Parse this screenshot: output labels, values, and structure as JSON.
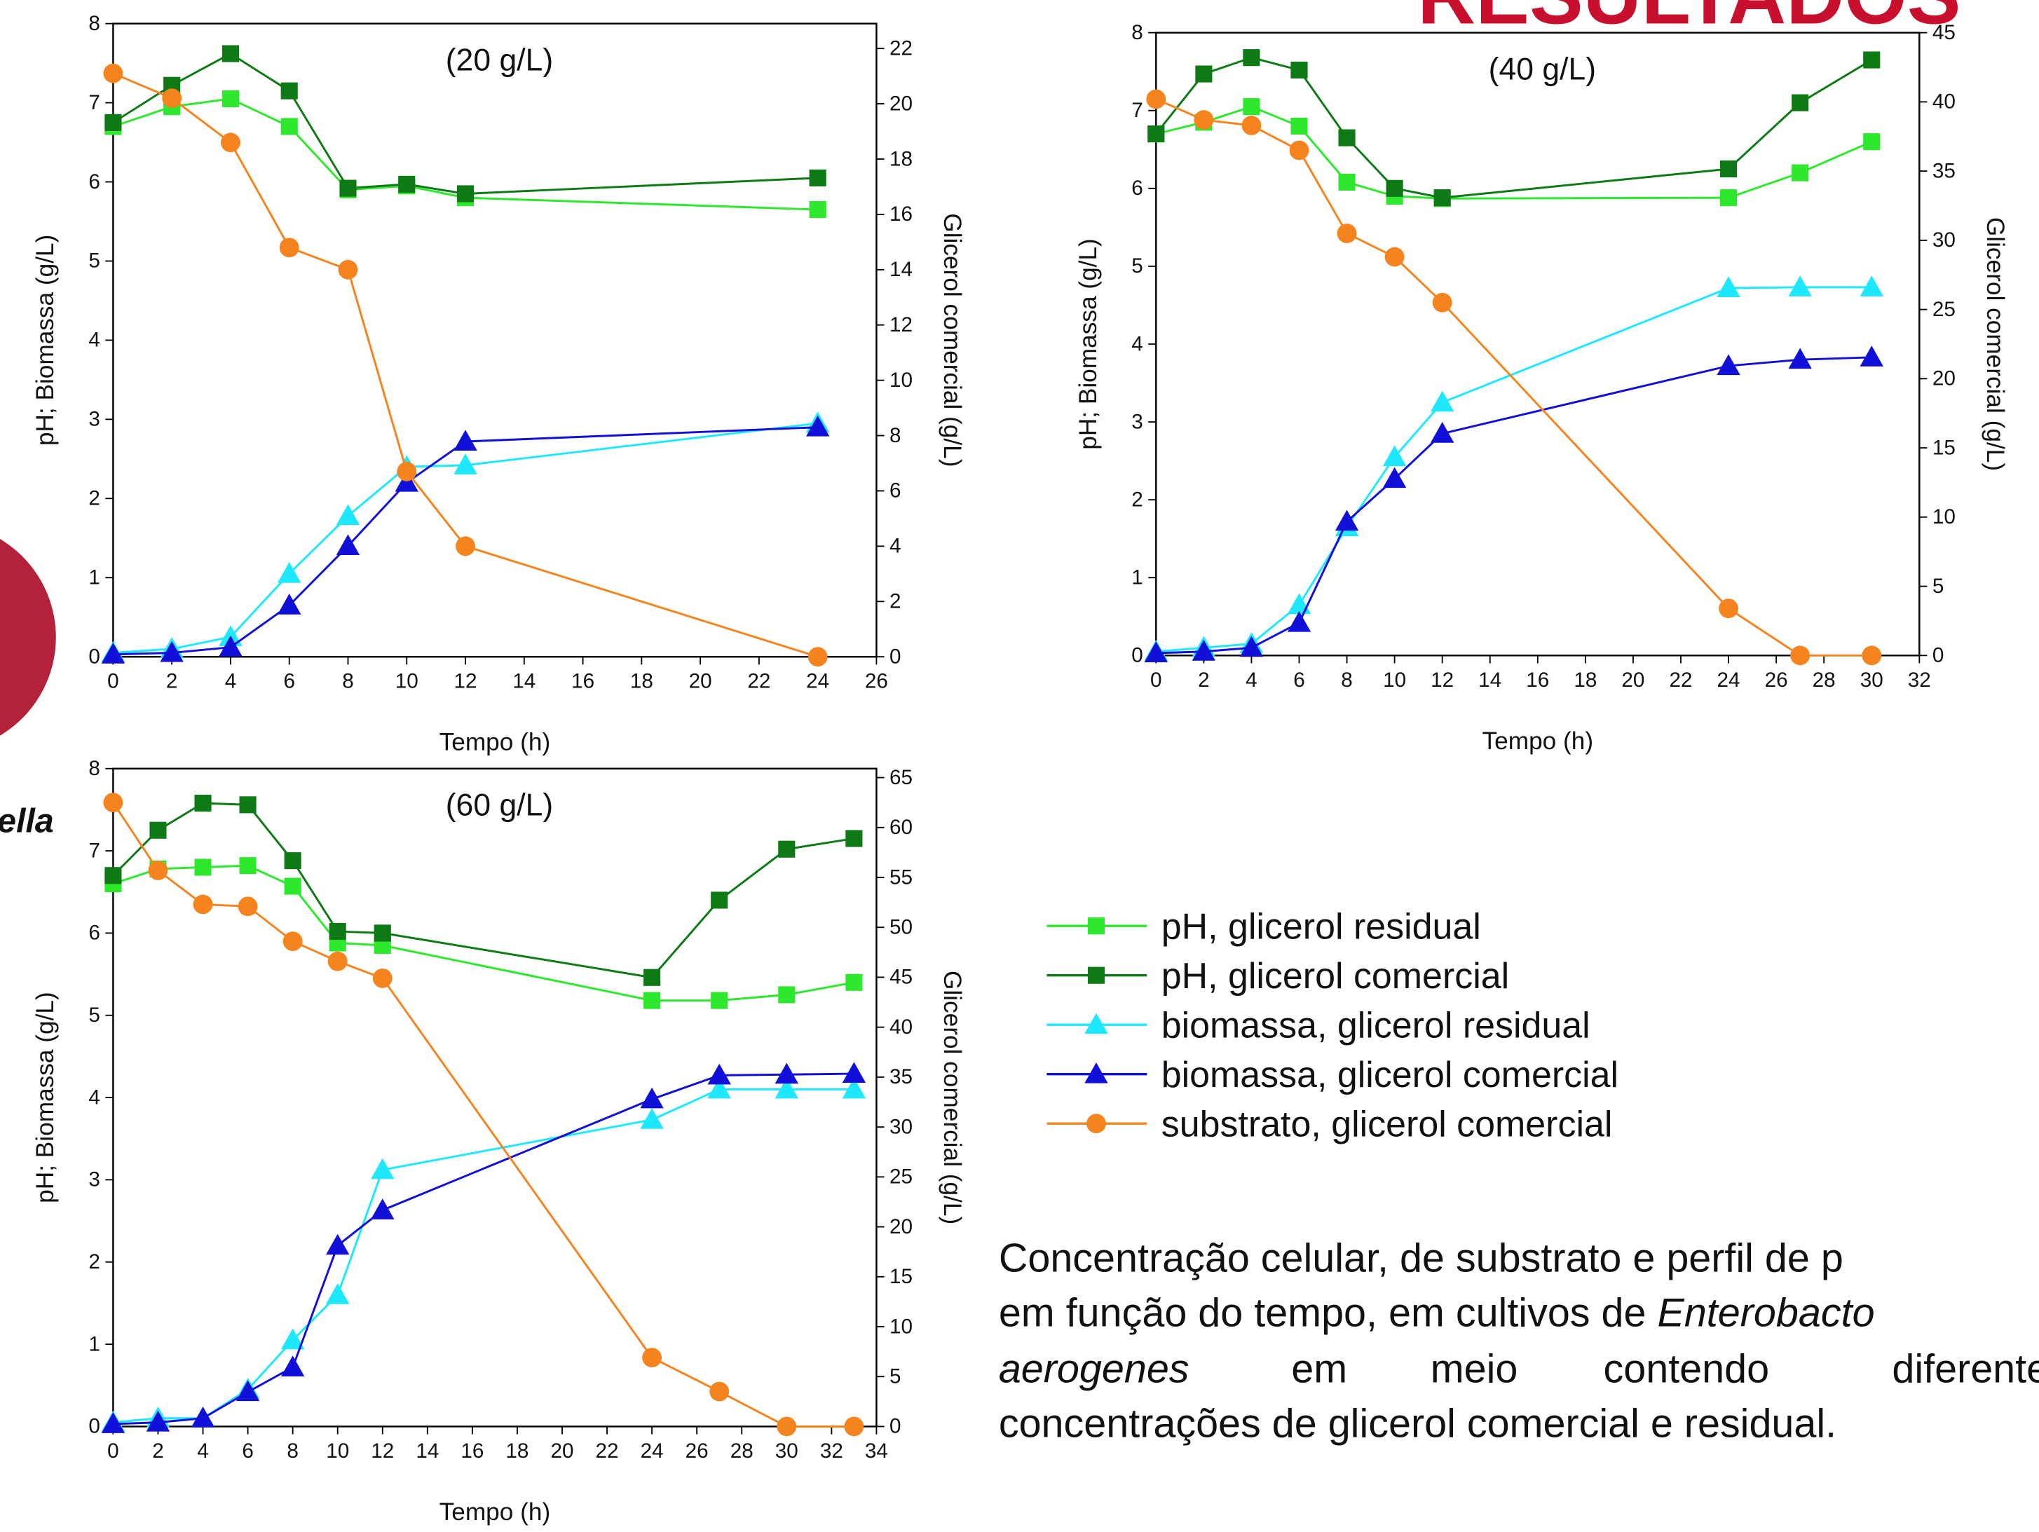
{
  "header_title": "RESULTADOS",
  "side_text": "ella",
  "chart_data": [
    {
      "type": "line",
      "title": "(20 g/L)",
      "xlabel": "Tempo (h)",
      "ylabel": "pH; Biomassa (g/L)",
      "y2label": "Glicerol comercial (g/L)",
      "x": [
        0,
        2,
        4,
        6,
        8,
        10,
        12,
        24
      ],
      "xlim": [
        0,
        26
      ],
      "xticks": [
        0,
        2,
        4,
        6,
        8,
        10,
        12,
        14,
        16,
        18,
        20,
        22,
        24,
        26
      ],
      "ylim": [
        0,
        8
      ],
      "yticks": [
        0,
        1,
        2,
        3,
        4,
        5,
        6,
        7,
        8
      ],
      "y2lim": [
        0,
        22.9
      ],
      "y2ticks": [
        0,
        2,
        4,
        6,
        8,
        10,
        12,
        14,
        16,
        18,
        20,
        22
      ],
      "series": [
        {
          "name": "pH, glicerol residual",
          "color": "#2de82d",
          "marker": "square",
          "values": [
            6.7,
            6.95,
            7.05,
            6.7,
            5.9,
            5.95,
            5.8,
            5.65
          ]
        },
        {
          "name": "pH, glicerol comercial",
          "color": "#0e7a16",
          "marker": "square",
          "values": [
            6.75,
            7.22,
            7.62,
            7.15,
            5.92,
            5.97,
            5.85,
            6.05
          ]
        },
        {
          "name": "biomassa, glicerol residual",
          "color": "#1ee8ff",
          "marker": "triangle",
          "values": [
            0.05,
            0.1,
            0.25,
            1.05,
            1.78,
            2.4,
            2.42,
            2.95
          ]
        },
        {
          "name": "biomassa, glicerol comercial",
          "color": "#1010d8",
          "marker": "triangle",
          "values": [
            0.03,
            0.05,
            0.12,
            0.65,
            1.4,
            2.2,
            2.72,
            2.9
          ]
        },
        {
          "name": "substrato, glicerol comercial",
          "color": "#f5841f",
          "marker": "circle",
          "axis": "y2",
          "values": [
            21.1,
            20.2,
            18.6,
            14.8,
            14.0,
            6.7,
            4.0,
            0
          ]
        }
      ]
    },
    {
      "type": "line",
      "title": "(40 g/L)",
      "xlabel": "Tempo (h)",
      "ylabel": "pH; Biomassa (g/L)",
      "y2label": "Glicerol comercial (g/L)",
      "x": [
        0,
        2,
        4,
        6,
        8,
        10,
        12,
        24,
        27,
        30
      ],
      "xlim": [
        0,
        32
      ],
      "xticks": [
        0,
        2,
        4,
        6,
        8,
        10,
        12,
        14,
        16,
        18,
        20,
        22,
        24,
        26,
        28,
        30,
        32
      ],
      "ylim": [
        0,
        8
      ],
      "yticks": [
        0,
        1,
        2,
        3,
        4,
        5,
        6,
        7,
        8
      ],
      "y2lim": [
        0,
        45
      ],
      "y2ticks": [
        0,
        5,
        10,
        15,
        20,
        25,
        30,
        35,
        40,
        45
      ],
      "series": [
        {
          "name": "pH, glicerol residual",
          "color": "#2de82d",
          "marker": "square",
          "values": [
            6.7,
            6.85,
            7.05,
            6.8,
            6.08,
            5.9,
            5.87,
            5.88,
            6.2,
            6.6
          ]
        },
        {
          "name": "pH, glicerol comercial",
          "color": "#0e7a16",
          "marker": "square",
          "values": [
            6.7,
            7.47,
            7.68,
            7.52,
            6.65,
            6.0,
            5.88,
            6.25,
            7.1,
            7.65
          ]
        },
        {
          "name": "biomassa, glicerol residual",
          "color": "#1ee8ff",
          "marker": "triangle",
          "values": [
            0.05,
            0.1,
            0.15,
            0.65,
            1.65,
            2.55,
            3.25,
            4.72,
            4.73,
            4.73
          ]
        },
        {
          "name": "biomassa, glicerol comercial",
          "color": "#1010d8",
          "marker": "triangle",
          "values": [
            0.03,
            0.05,
            0.1,
            0.42,
            1.72,
            2.27,
            2.85,
            3.72,
            3.8,
            3.83
          ]
        },
        {
          "name": "substrato, glicerol comercial",
          "color": "#f5841f",
          "marker": "circle",
          "axis": "y2",
          "values": [
            40.2,
            38.7,
            38.3,
            36.5,
            30.5,
            28.8,
            25.5,
            3.4,
            0,
            0
          ]
        }
      ]
    },
    {
      "type": "line",
      "title": "(60 g/L)",
      "xlabel": "Tempo (h)",
      "ylabel": "pH; Biomassa (g/L)",
      "y2label": "Glicerol comercial (g/L)",
      "x": [
        0,
        2,
        4,
        6,
        8,
        10,
        12,
        24,
        27,
        30,
        33
      ],
      "xlim": [
        0,
        34
      ],
      "xticks": [
        0,
        2,
        4,
        6,
        8,
        10,
        12,
        14,
        16,
        18,
        20,
        22,
        24,
        26,
        28,
        30,
        32,
        34
      ],
      "ylim": [
        0,
        8
      ],
      "yticks": [
        0,
        1,
        2,
        3,
        4,
        5,
        6,
        7,
        8
      ],
      "y2lim": [
        0,
        65.9
      ],
      "y2ticks": [
        0,
        5,
        10,
        15,
        20,
        25,
        30,
        35,
        40,
        45,
        50,
        55,
        60,
        65
      ],
      "series": [
        {
          "name": "pH, glicerol residual",
          "color": "#2de82d",
          "marker": "square",
          "values": [
            6.6,
            6.78,
            6.8,
            6.82,
            6.57,
            5.88,
            5.85,
            5.18,
            5.18,
            5.25,
            5.4
          ]
        },
        {
          "name": "pH, glicerol comercial",
          "color": "#0e7a16",
          "marker": "square",
          "values": [
            6.7,
            7.25,
            7.58,
            7.56,
            6.88,
            6.02,
            6.0,
            5.46,
            6.4,
            7.02,
            7.15
          ]
        },
        {
          "name": "biomassa, glicerol residual",
          "color": "#1ee8ff",
          "marker": "triangle",
          "values": [
            0.05,
            0.1,
            0.1,
            0.45,
            1.05,
            1.6,
            3.12,
            3.73,
            4.1,
            4.1,
            4.1
          ]
        },
        {
          "name": "biomassa, glicerol comercial",
          "color": "#1010d8",
          "marker": "triangle",
          "values": [
            0.03,
            0.05,
            0.1,
            0.42,
            0.72,
            2.2,
            2.63,
            3.98,
            4.27,
            4.28,
            4.29
          ]
        },
        {
          "name": "substrato, glicerol comercial",
          "color": "#f5841f",
          "marker": "circle",
          "axis": "y2",
          "values": [
            62.5,
            55.7,
            52.3,
            52.1,
            48.6,
            46.6,
            44.9,
            6.9,
            3.5,
            0,
            0
          ]
        }
      ]
    }
  ],
  "caption": {
    "lines": [
      [
        {
          "text": "Concentração celular, de substrato e perfil de p"
        }
      ],
      [
        {
          "text": "em função do tempo, em cultivos de "
        },
        {
          "text": "Enterobacto",
          "italic": true
        }
      ],
      [
        {
          "text": "aerogenes",
          "italic": true
        },
        {
          "text": "em"
        },
        {
          "text": "meio"
        },
        {
          "text": "contendo"
        },
        {
          "text": "diferente"
        }
      ],
      [
        {
          "text": "concentrações de glicerol comercial e residual."
        }
      ]
    ]
  }
}
